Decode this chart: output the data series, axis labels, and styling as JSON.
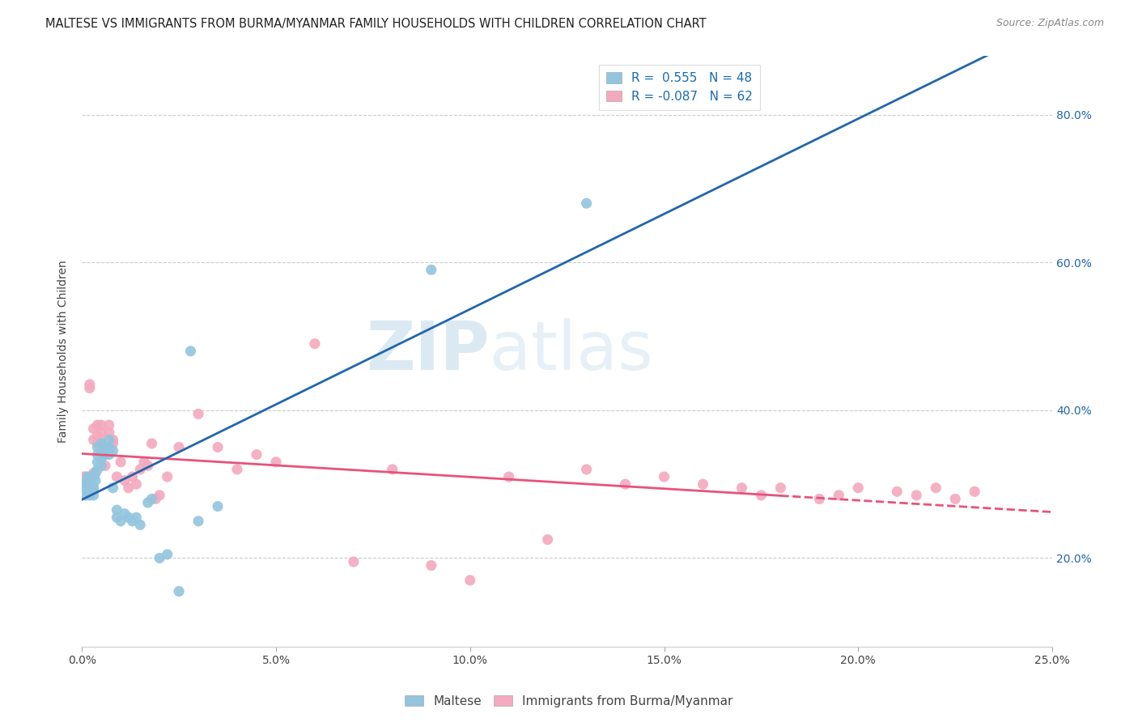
{
  "title": "MALTESE VS IMMIGRANTS FROM BURMA/MYANMAR FAMILY HOUSEHOLDS WITH CHILDREN CORRELATION CHART",
  "source": "Source: ZipAtlas.com",
  "ylabel": "Family Households with Children",
  "xlim": [
    0.0,
    0.25
  ],
  "ylim": [
    0.08,
    0.88
  ],
  "xtick_labels": [
    "0.0%",
    "5.0%",
    "10.0%",
    "15.0%",
    "20.0%",
    "25.0%"
  ],
  "xtick_vals": [
    0.0,
    0.05,
    0.1,
    0.15,
    0.2,
    0.25
  ],
  "ytick_labels": [
    "20.0%",
    "40.0%",
    "60.0%",
    "80.0%"
  ],
  "ytick_vals": [
    0.2,
    0.4,
    0.6,
    0.8
  ],
  "legend_bottom": [
    "Maltese",
    "Immigrants from Burma/Myanmar"
  ],
  "blue_color": "#92c5de",
  "pink_color": "#f4a9be",
  "line_blue": "#2166ac",
  "line_pink": "#e8537a",
  "watermark_zip": "ZIP",
  "watermark_atlas": "atlas",
  "blue_R": "R =  0.555",
  "blue_N": "N = 48",
  "pink_R": "R = -0.087",
  "pink_N": "N = 62",
  "maltese_x": [
    0.0005,
    0.001,
    0.001,
    0.0015,
    0.002,
    0.002,
    0.002,
    0.0025,
    0.003,
    0.003,
    0.003,
    0.003,
    0.0035,
    0.0035,
    0.004,
    0.004,
    0.004,
    0.004,
    0.005,
    0.005,
    0.005,
    0.005,
    0.006,
    0.006,
    0.006,
    0.007,
    0.007,
    0.007,
    0.008,
    0.008,
    0.009,
    0.009,
    0.01,
    0.011,
    0.012,
    0.013,
    0.014,
    0.015,
    0.017,
    0.018,
    0.02,
    0.022,
    0.025,
    0.028,
    0.03,
    0.035,
    0.09,
    0.13
  ],
  "maltese_y": [
    0.3,
    0.285,
    0.295,
    0.31,
    0.3,
    0.285,
    0.295,
    0.305,
    0.295,
    0.31,
    0.295,
    0.285,
    0.305,
    0.315,
    0.32,
    0.33,
    0.34,
    0.35,
    0.34,
    0.335,
    0.325,
    0.355,
    0.35,
    0.34,
    0.345,
    0.36,
    0.35,
    0.34,
    0.345,
    0.295,
    0.255,
    0.265,
    0.25,
    0.26,
    0.255,
    0.25,
    0.255,
    0.245,
    0.275,
    0.28,
    0.2,
    0.205,
    0.155,
    0.48,
    0.25,
    0.27,
    0.59,
    0.68
  ],
  "burma_x": [
    0.0005,
    0.001,
    0.001,
    0.0015,
    0.002,
    0.002,
    0.003,
    0.003,
    0.003,
    0.004,
    0.004,
    0.004,
    0.005,
    0.005,
    0.005,
    0.006,
    0.006,
    0.007,
    0.007,
    0.008,
    0.008,
    0.009,
    0.01,
    0.011,
    0.012,
    0.013,
    0.014,
    0.015,
    0.016,
    0.017,
    0.018,
    0.019,
    0.02,
    0.022,
    0.025,
    0.03,
    0.035,
    0.04,
    0.045,
    0.05,
    0.06,
    0.07,
    0.08,
    0.09,
    0.1,
    0.11,
    0.12,
    0.13,
    0.14,
    0.15,
    0.16,
    0.17,
    0.175,
    0.18,
    0.19,
    0.195,
    0.2,
    0.21,
    0.215,
    0.22,
    0.225,
    0.23
  ],
  "burma_y": [
    0.31,
    0.3,
    0.31,
    0.29,
    0.43,
    0.435,
    0.375,
    0.36,
    0.315,
    0.365,
    0.38,
    0.355,
    0.38,
    0.37,
    0.36,
    0.35,
    0.325,
    0.37,
    0.38,
    0.355,
    0.36,
    0.31,
    0.33,
    0.305,
    0.295,
    0.31,
    0.3,
    0.32,
    0.33,
    0.325,
    0.355,
    0.28,
    0.285,
    0.31,
    0.35,
    0.395,
    0.35,
    0.32,
    0.34,
    0.33,
    0.49,
    0.195,
    0.32,
    0.19,
    0.17,
    0.31,
    0.225,
    0.32,
    0.3,
    0.31,
    0.3,
    0.295,
    0.285,
    0.295,
    0.28,
    0.285,
    0.295,
    0.29,
    0.285,
    0.295,
    0.28,
    0.29
  ],
  "title_fontsize": 10.5,
  "axis_label_fontsize": 10,
  "tick_fontsize": 10,
  "source_fontsize": 9,
  "legend_fontsize": 11
}
